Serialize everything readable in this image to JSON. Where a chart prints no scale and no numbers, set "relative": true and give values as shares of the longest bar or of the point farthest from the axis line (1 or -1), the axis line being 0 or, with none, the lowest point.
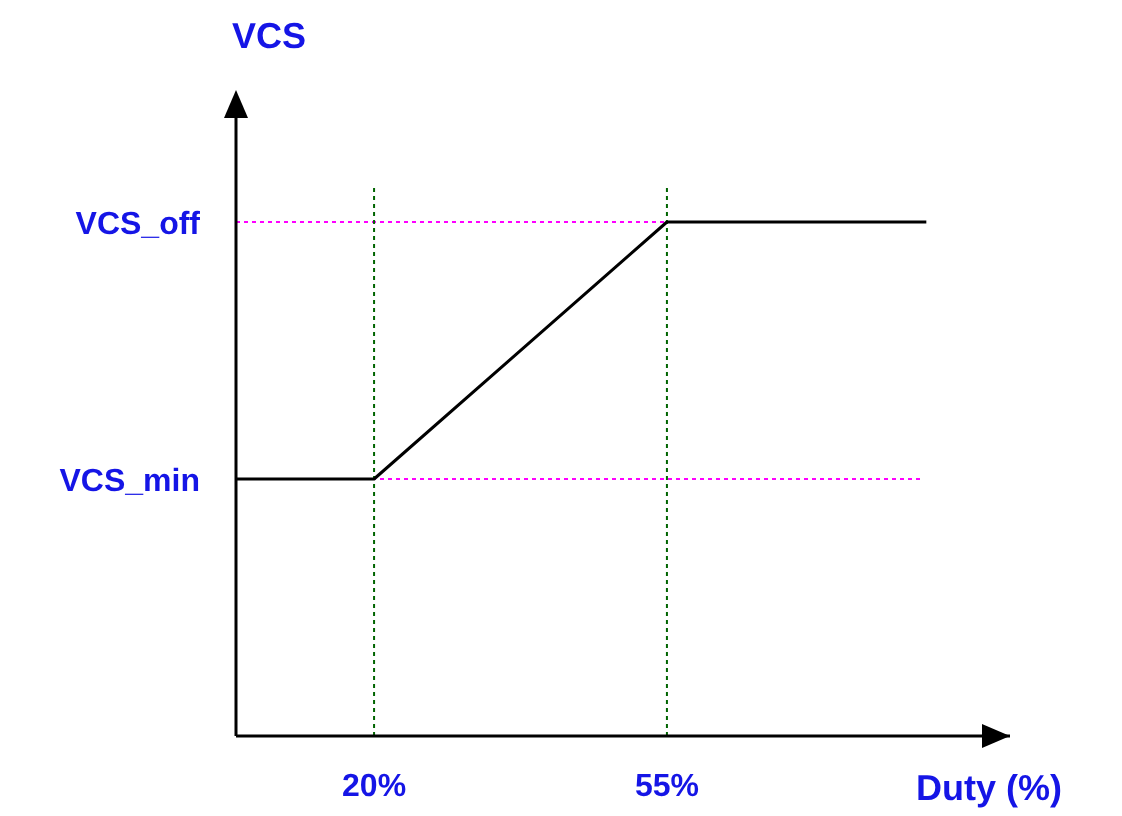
{
  "chart_data": {
    "type": "line",
    "xlabel": "Duty (%)",
    "ylabel": "VCS",
    "relative": true,
    "x": [
      3.5,
      20,
      55,
      86
    ],
    "xlim": [
      3.5,
      96
    ],
    "xticks": [
      {
        "value": 20,
        "label": "20%"
      },
      {
        "value": 55,
        "label": "55%"
      }
    ],
    "series": [
      {
        "color": "#000000",
        "values": [
          0.5,
          0.5,
          1,
          1
        ]
      }
    ],
    "ref_lines": [
      {
        "axis": "y",
        "value": 1,
        "label": "VCS_off",
        "color": "#ff00ff",
        "line_style": "dotted"
      },
      {
        "axis": "y",
        "value": 0.5,
        "label": "VCS_min",
        "color": "#ff00ff",
        "line_style": "dotted"
      },
      {
        "axis": "x",
        "value": 20,
        "label": null,
        "color": "#006400",
        "line_style": "dotted"
      },
      {
        "axis": "x",
        "value": 55,
        "label": null,
        "color": "#006400",
        "line_style": "dotted"
      }
    ],
    "grid": false,
    "marker": "none",
    "line_style": "solid"
  }
}
